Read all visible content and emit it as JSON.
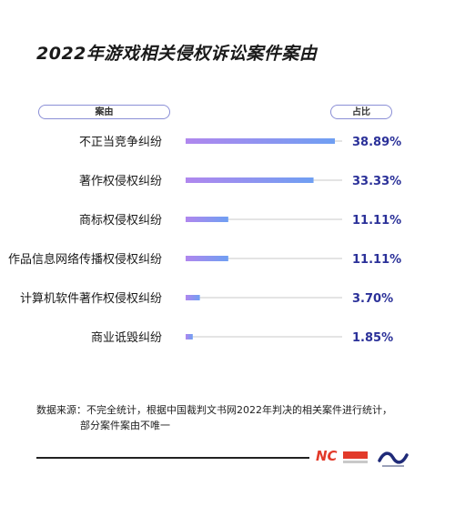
{
  "title": "2022年游戏相关侵权诉讼案件案由",
  "header": {
    "reason_label": "案由",
    "share_label": "占比"
  },
  "chart_data": {
    "type": "bar",
    "orientation": "horizontal",
    "categories": [
      "不正当竞争纠纷",
      "著作权侵权纠纷",
      "商标权侵权纠纷",
      "作品信息网络传播权侵权纠纷",
      "计算机软件著作权侵权纠纷",
      "商业诋毁纠纷"
    ],
    "values": [
      38.89,
      33.33,
      11.11,
      11.11,
      3.7,
      1.85
    ],
    "value_labels": [
      "38.89%",
      "33.33%",
      "11.11%",
      "11.11%",
      "3.70%",
      "1.85%"
    ],
    "xlim": [
      0,
      40
    ],
    "bar_gradient": [
      "#b087ee",
      "#6f9ff2"
    ],
    "track_color": "#c8c8c8",
    "value_color": "#2b3199"
  },
  "note": {
    "line1": "数据来源：不完全统计，根据中国裁判文书网2022年判决的相关案件进行统计，",
    "line2": "部分案件案由不唯一"
  },
  "logos": {
    "left": "nc-logo",
    "right": "wave-logo"
  }
}
